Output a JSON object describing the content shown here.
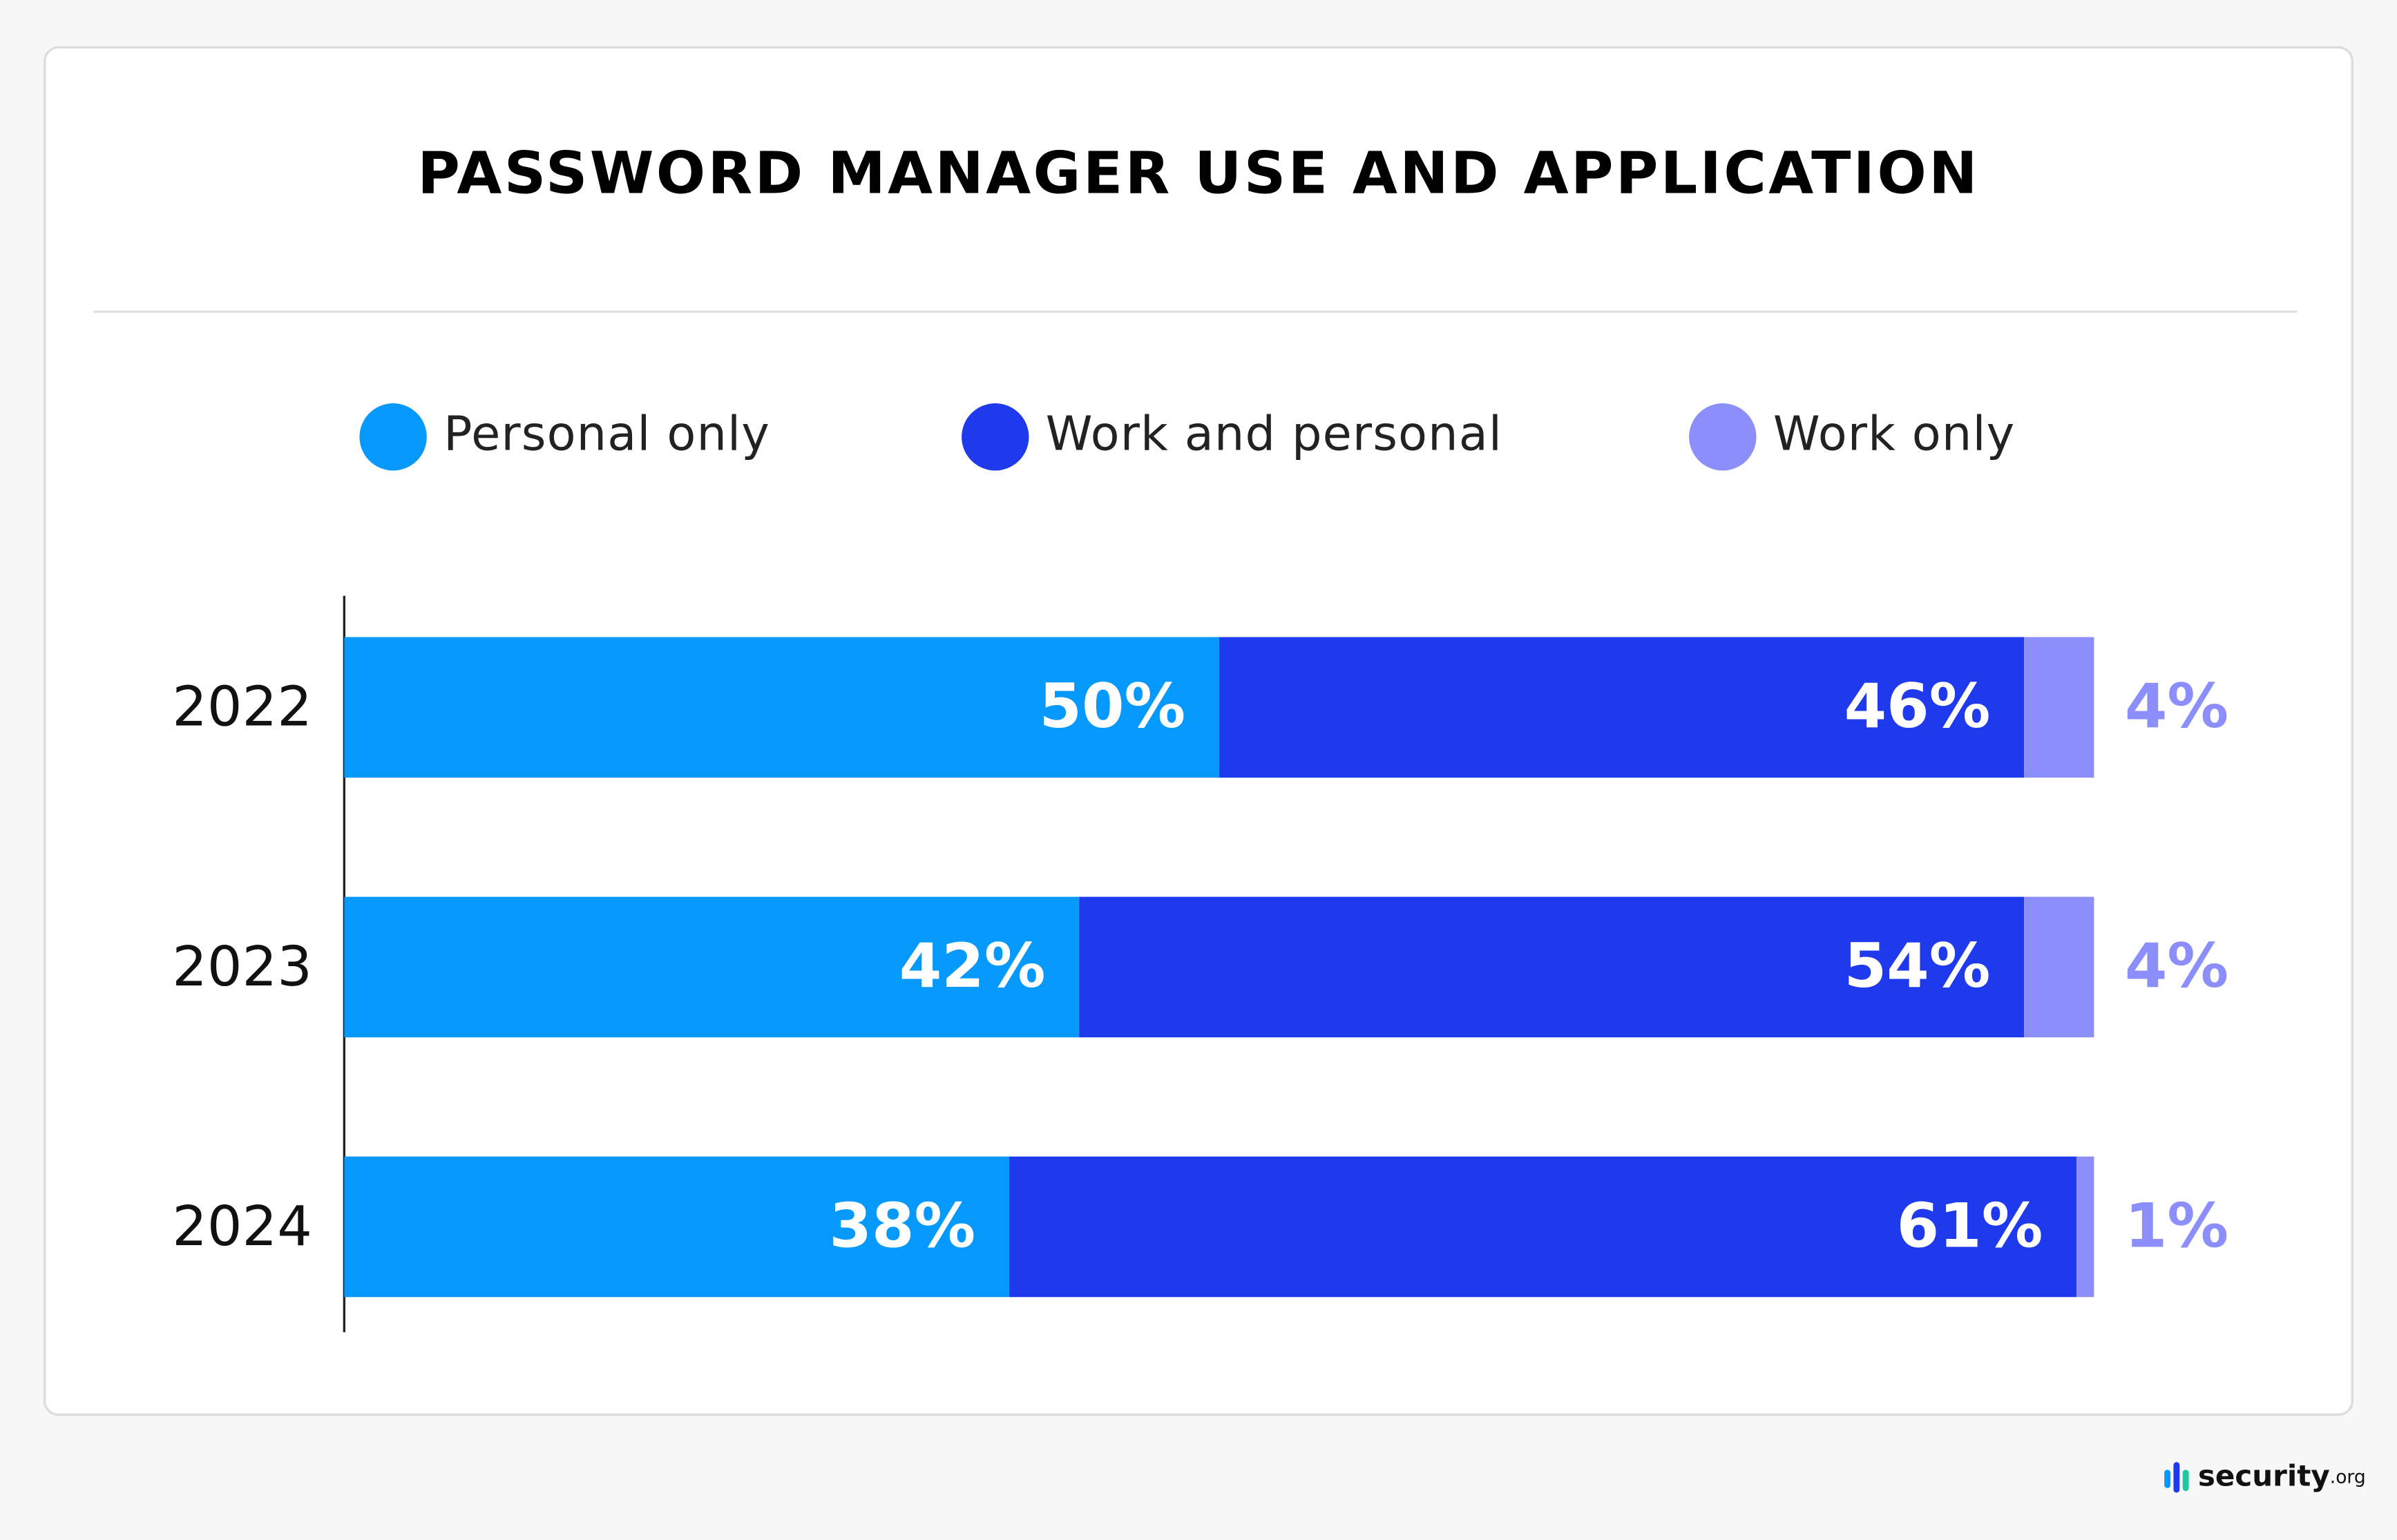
{
  "chart_data": {
    "type": "stacked_bar",
    "orientation": "horizontal",
    "title": "PASSWORD MANAGER USE AND APPLICATION",
    "categories": [
      "2022",
      "2023",
      "2024"
    ],
    "xlim": [
      0,
      100
    ],
    "series": [
      {
        "name": "Personal only",
        "color": "#0499fb",
        "values": [
          50,
          42,
          38
        ],
        "value_labels": [
          "50%",
          "42%",
          "38%"
        ]
      },
      {
        "name": "Work and personal",
        "color": "#1f3aec",
        "values": [
          46,
          54,
          61
        ],
        "value_labels": [
          "46%",
          "54%",
          "61%"
        ]
      },
      {
        "name": "Work only",
        "color": "#8c8efb",
        "values": [
          4,
          4,
          1
        ],
        "value_labels": [
          "4%",
          "4%",
          "1%"
        ]
      }
    ]
  },
  "brand": {
    "name": "security",
    "suffix": ".org"
  }
}
